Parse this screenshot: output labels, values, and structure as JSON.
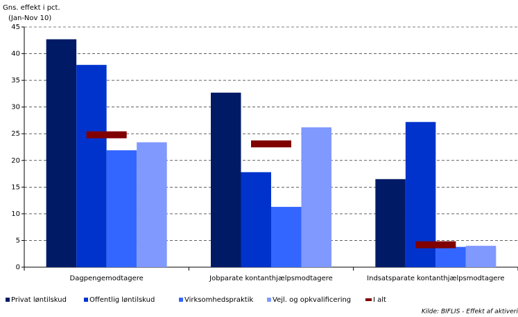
{
  "chart_data": {
    "type": "bar",
    "y_label_lines": [
      "Gns. effekt i pct.",
      "(Jan-Nov 10)"
    ],
    "categories": [
      "Dagpengemodtagere",
      "Jobparate kontanthjælpsmodtagere",
      "Indsatsparate kontanthjælpsmodtagere"
    ],
    "series": [
      {
        "name": "Privat løntilskud",
        "color": "#001a66",
        "values": [
          42.7,
          32.7,
          16.5
        ]
      },
      {
        "name": "Offentlig løntilskud",
        "color": "#0033cc",
        "values": [
          37.9,
          17.8,
          27.2
        ]
      },
      {
        "name": "Virksomhedspraktik",
        "color": "#3366ff",
        "values": [
          21.9,
          11.3,
          3.8
        ]
      },
      {
        "name": "Vejl. og opkvalificering",
        "color": "#8099ff",
        "values": [
          23.4,
          26.2,
          4.0
        ]
      },
      {
        "name": "I alt",
        "color": "#800000",
        "type": "dash",
        "values": [
          24.8,
          23.1,
          4.2
        ]
      }
    ],
    "ylim": [
      0,
      45
    ],
    "yticks": [
      0,
      5,
      10,
      15,
      20,
      25,
      30,
      35,
      40,
      45
    ],
    "grid": true,
    "source": "Kilde: BIFLIS - Effekt af aktiveri"
  }
}
